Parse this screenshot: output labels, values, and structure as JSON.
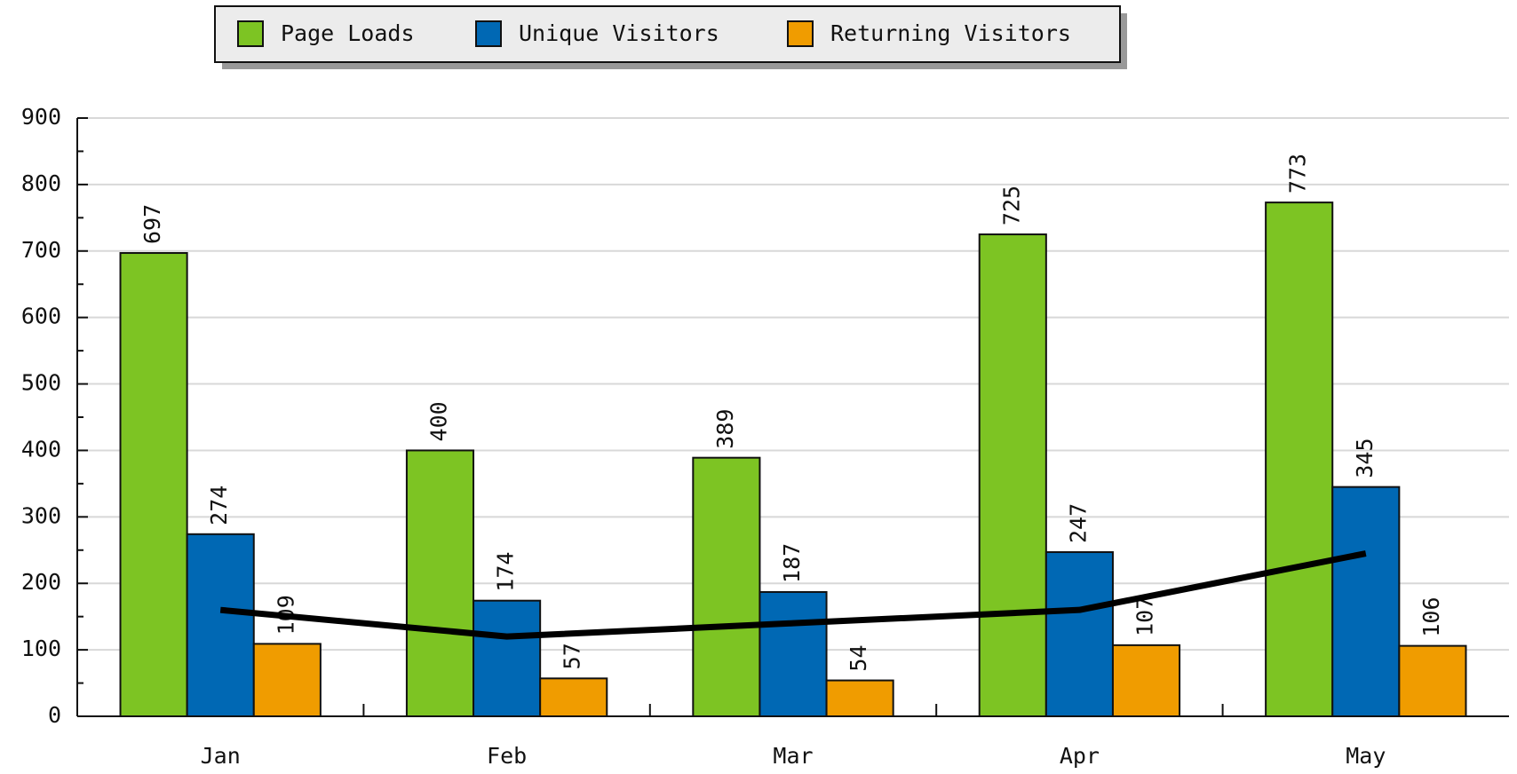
{
  "chart_data": {
    "type": "bar",
    "categories": [
      "Jan",
      "Feb",
      "Mar",
      "Apr",
      "May"
    ],
    "series": [
      {
        "name": "Page Loads",
        "color": "#7dc423",
        "values": [
          697,
          400,
          389,
          725,
          773
        ]
      },
      {
        "name": "Unique Visitors",
        "color": "#0068b4",
        "values": [
          274,
          174,
          187,
          247,
          345
        ]
      },
      {
        "name": "Returning Visitors",
        "color": "#f09c00",
        "values": [
          109,
          57,
          54,
          107,
          106
        ]
      },
      {
        "type": "line",
        "color": "#000000",
        "values": [
          160,
          120,
          140,
          160,
          245
        ]
      }
    ],
    "ylim": [
      0,
      900
    ],
    "yticks": [
      0,
      100,
      200,
      300,
      400,
      500,
      600,
      700,
      800,
      900
    ],
    "grid": true,
    "legend": "top"
  }
}
